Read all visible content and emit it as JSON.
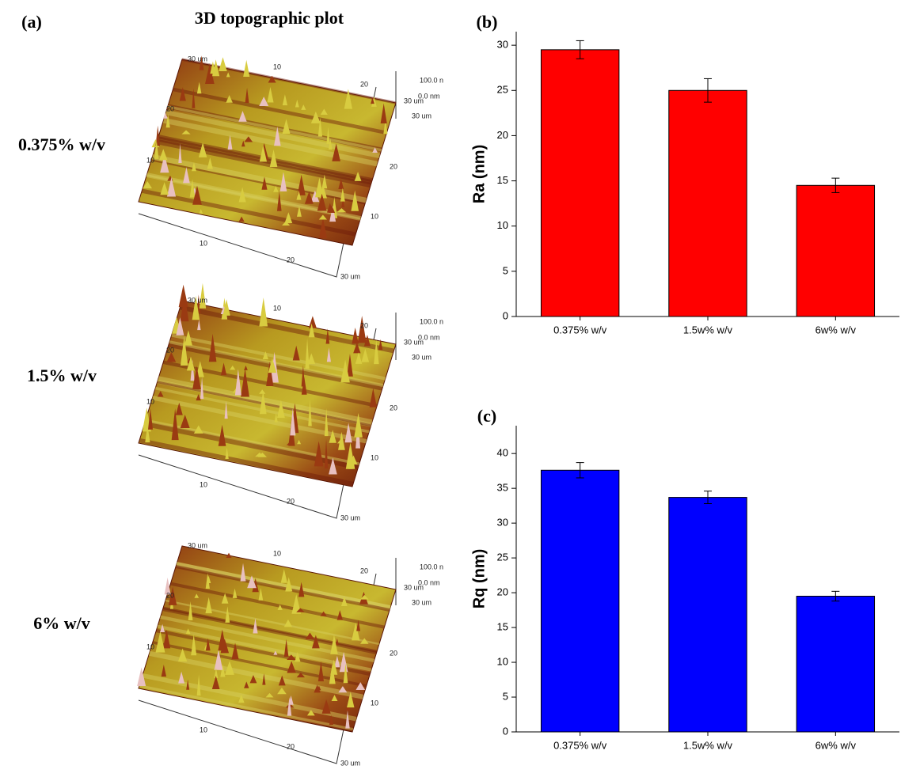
{
  "panel_a": {
    "label": "(a)",
    "title": "3D topographic plot",
    "rows": [
      {
        "label": "0.375% w/v",
        "axis_labels": [
          "30 um",
          "10",
          "20",
          "100.0 n",
          "0.0 nm",
          "30 um",
          "30 um",
          "20",
          "10",
          "20",
          "10",
          "10",
          "20",
          "30 um"
        ]
      },
      {
        "label": "1.5% w/v",
        "axis_labels": [
          "30 um",
          "10",
          "20",
          "100.0 n",
          "0.0 nm",
          "30 um",
          "30 um",
          "20",
          "10",
          "20",
          "10",
          "10",
          "20",
          "30 um"
        ]
      },
      {
        "label": "6% w/v",
        "axis_labels": [
          "30 um",
          "10",
          "20",
          "100.0 n",
          "0.0 nm",
          "30 um",
          "30 um",
          "20",
          "10",
          "20",
          "10",
          "10",
          "20",
          "30 um"
        ]
      }
    ]
  },
  "chart_data": [
    {
      "type": "bar",
      "title": "(b)",
      "ylabel": "Ra (nm)",
      "categories": [
        "0.375% w/v",
        "1.5w% w/v",
        "6w% w/v"
      ],
      "values": [
        29.5,
        25,
        14.5
      ],
      "errors": [
        1,
        1.3,
        0.8
      ],
      "color": "#ff0000",
      "ylim": [
        0,
        31.5
      ],
      "yticks": [
        0,
        5,
        10,
        15,
        20,
        25,
        30
      ]
    },
    {
      "type": "bar",
      "title": "(c)",
      "ylabel": "Rq (nm)",
      "categories": [
        "0.375% w/v",
        "1.5w% w/v",
        "6w% w/v"
      ],
      "values": [
        37.6,
        33.7,
        19.5
      ],
      "errors": [
        1.1,
        0.9,
        0.7
      ],
      "color": "#0000ff",
      "ylim": [
        0,
        44
      ],
      "yticks": [
        0,
        5,
        10,
        15,
        20,
        25,
        30,
        35,
        40
      ]
    }
  ]
}
